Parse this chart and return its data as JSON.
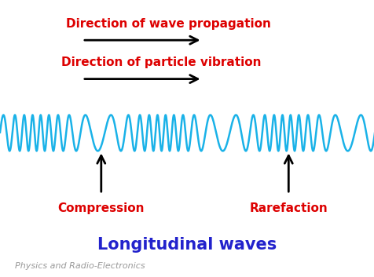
{
  "bg_color": "#ffffff",
  "wave_color": "#1ab2e8",
  "wave_linewidth": 1.8,
  "arrow_color": "#000000",
  "title_text": "Longitudinal waves",
  "title_color": "#2222cc",
  "title_fontsize": 15,
  "label1_text": "Direction of wave propagation",
  "label2_text": "Direction of particle vibration",
  "label_color": "#dd0000",
  "label_fontsize": 11,
  "compression_text": "Compression",
  "rarefaction_text": "Rarefaction",
  "label_fontweight": "bold",
  "comp_raref_color": "#dd0000",
  "comp_raref_fontsize": 11,
  "watermark_text": "Physics and Radio-Electronics",
  "watermark_color": "#999999",
  "watermark_fontsize": 8
}
